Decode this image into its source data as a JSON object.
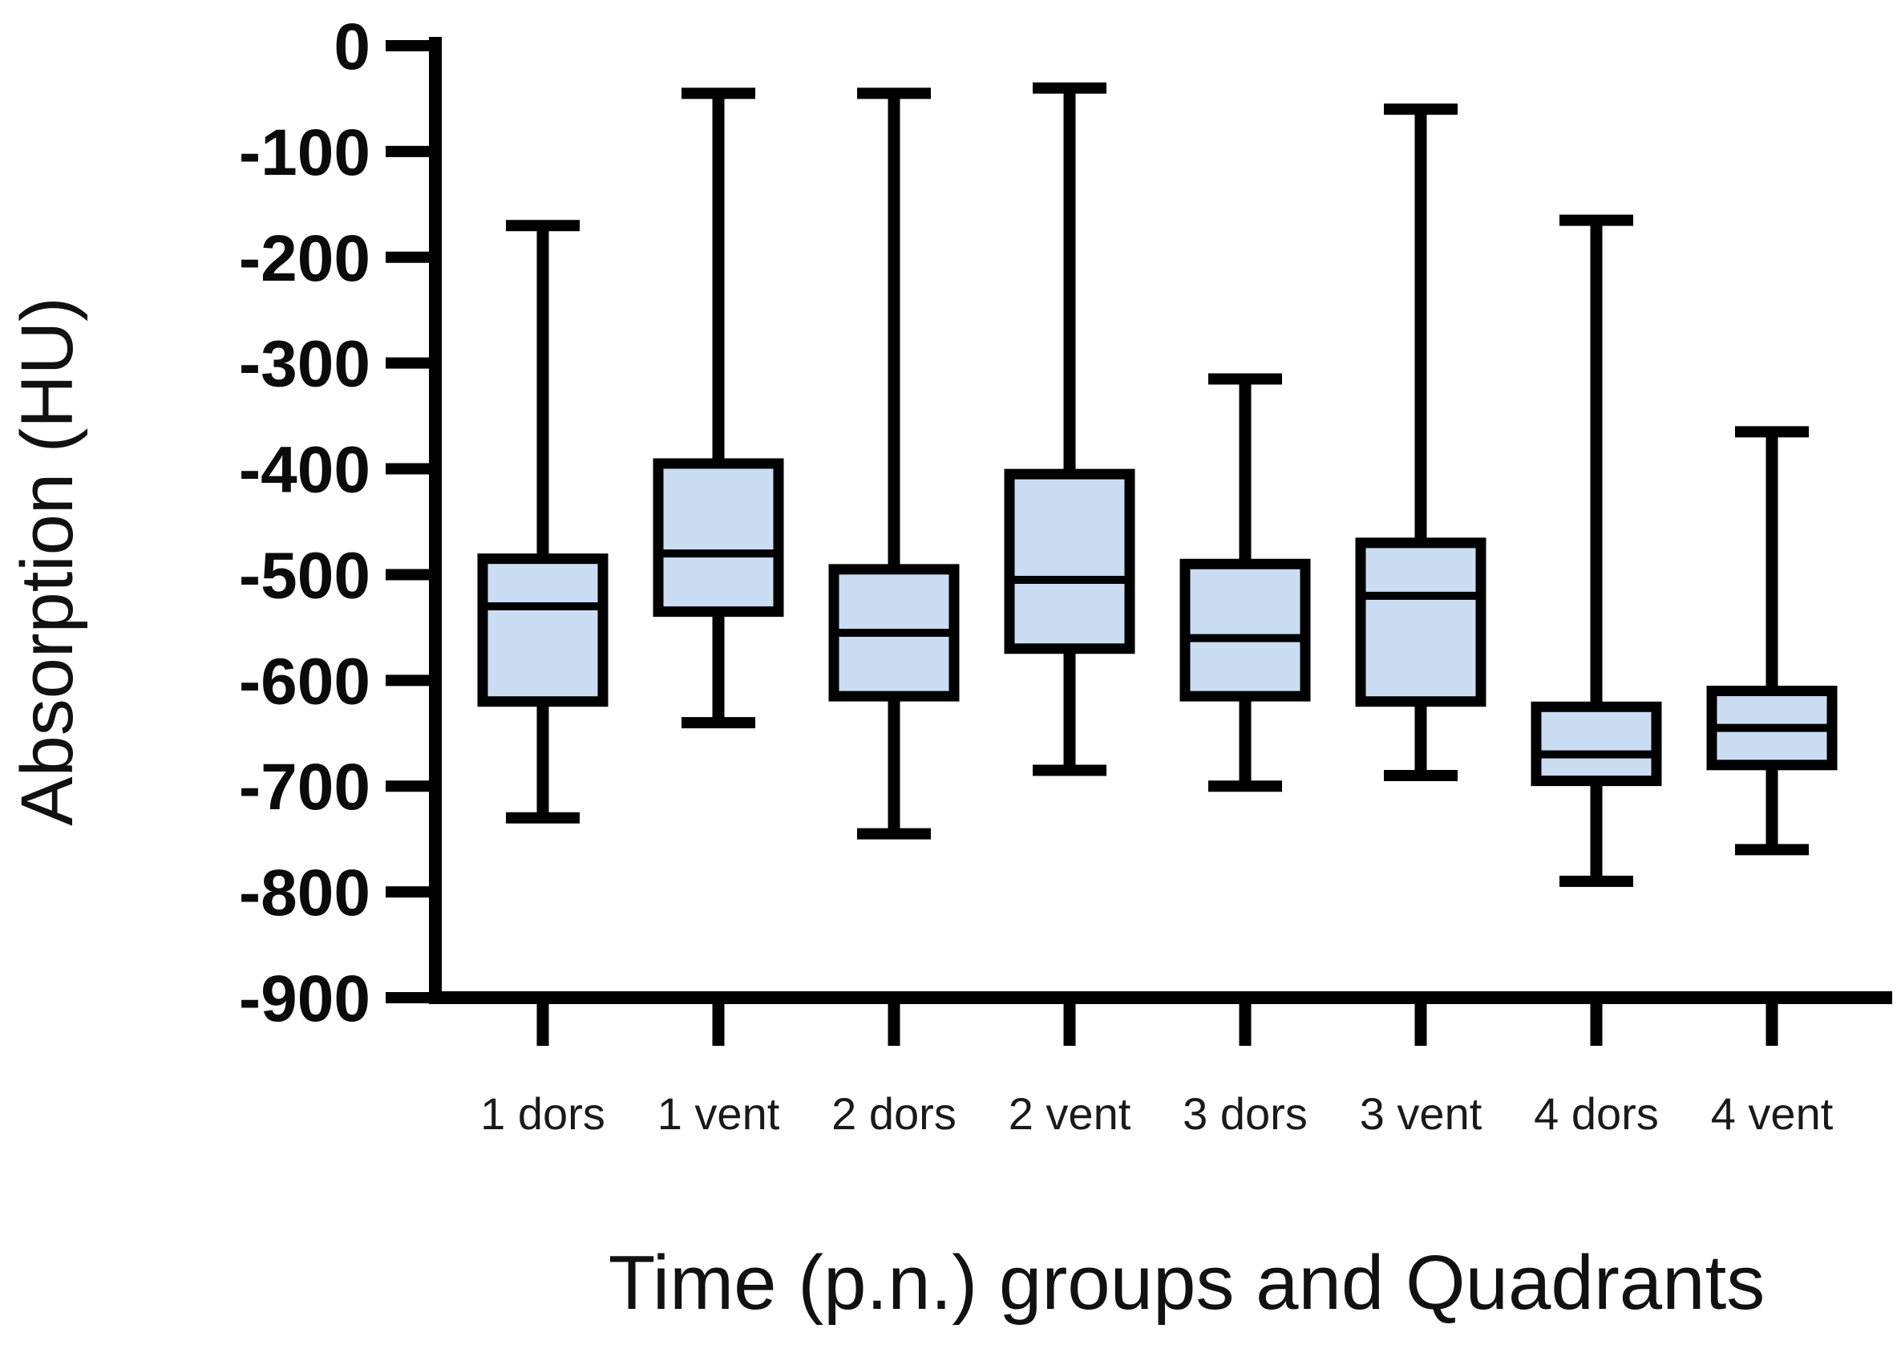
{
  "figure": {
    "background_color": "#ffffff",
    "x_axis_title": "Time (p.n.) groups and Quadrants",
    "y_axis_title": "Absorption (HU)"
  },
  "chart_data": {
    "type": "box",
    "title": "",
    "xlabel": "Time (p.n.) groups and Quadrants",
    "ylabel": "Absorption (HU)",
    "categories": [
      "1 dors",
      "1 vent",
      "2 dors",
      "2 vent",
      "3 dors",
      "3 vent",
      "4 dors",
      "4 vent"
    ],
    "y_ticks": [
      0,
      -100,
      -200,
      -300,
      -400,
      -500,
      -600,
      -700,
      -800,
      -900
    ],
    "ylim": [
      -900,
      0
    ],
    "grid": false,
    "legend": false,
    "box_fill_color": "#CBDDF3",
    "line_color": "#000000",
    "series": [
      {
        "category": "1 dors",
        "min": -730,
        "q1": -620,
        "median": -530,
        "q3": -485,
        "max": -170
      },
      {
        "category": "1 vent",
        "min": -640,
        "q1": -535,
        "median": -480,
        "q3": -395,
        "max": -45
      },
      {
        "category": "2 dors",
        "min": -745,
        "q1": -615,
        "median": -555,
        "q3": -495,
        "max": -45
      },
      {
        "category": "2 vent",
        "min": -685,
        "q1": -570,
        "median": -505,
        "q3": -405,
        "max": -40
      },
      {
        "category": "3 dors",
        "min": -700,
        "q1": -615,
        "median": -560,
        "q3": -490,
        "max": -315
      },
      {
        "category": "3 vent",
        "min": -690,
        "q1": -620,
        "median": -520,
        "q3": -470,
        "max": -60
      },
      {
        "category": "4 dors",
        "min": -790,
        "q1": -695,
        "median": -670,
        "q3": -625,
        "max": -165
      },
      {
        "category": "4 vent",
        "min": -760,
        "q1": -680,
        "median": -645,
        "q3": -610,
        "max": -365
      }
    ]
  }
}
